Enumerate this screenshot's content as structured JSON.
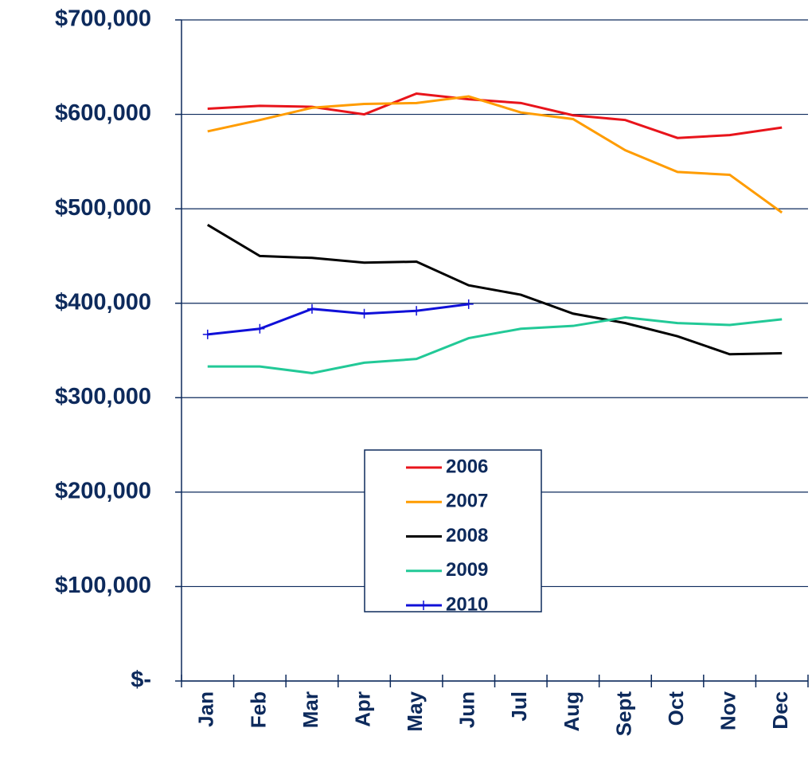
{
  "chart_data": {
    "type": "line",
    "categories": [
      "Jan",
      "Feb",
      "Mar",
      "Apr",
      "May",
      "Jun",
      "Jul",
      "Aug",
      "Sept",
      "Oct",
      "Nov",
      "Dec"
    ],
    "series": [
      {
        "name": "2006",
        "color": "#e8141b",
        "values": [
          606000,
          609000,
          608000,
          600000,
          622000,
          616000,
          612000,
          599000,
          594000,
          575000,
          578000,
          586000
        ]
      },
      {
        "name": "2007",
        "color": "#ff9c00",
        "values": [
          582000,
          594000,
          607000,
          611000,
          612000,
          619000,
          602000,
          595000,
          562000,
          539000,
          536000,
          496000
        ]
      },
      {
        "name": "2008",
        "color": "#000000",
        "values": [
          483000,
          450000,
          448000,
          443000,
          444000,
          419000,
          409000,
          389000,
          379000,
          365000,
          346000,
          347000
        ]
      },
      {
        "name": "2009",
        "color": "#22c997",
        "values": [
          333000,
          333000,
          326000,
          337000,
          341000,
          363000,
          373000,
          376000,
          385000,
          379000,
          377000,
          383000
        ]
      },
      {
        "name": "2010",
        "color": "#1010d8",
        "marker": "plus",
        "values": [
          367000,
          373000,
          394000,
          389000,
          392000,
          399000,
          null,
          null,
          null,
          null,
          null,
          null
        ]
      }
    ],
    "ylim": [
      0,
      700000
    ],
    "yticks": [
      {
        "value": 0,
        "label": "$-"
      },
      {
        "value": 100000,
        "label": "$100,000"
      },
      {
        "value": 200000,
        "label": "$200,000"
      },
      {
        "value": 300000,
        "label": "$300,000"
      },
      {
        "value": 400000,
        "label": "$400,000"
      },
      {
        "value": 500000,
        "label": "$500,000"
      },
      {
        "value": 600000,
        "label": "$600,000"
      },
      {
        "value": 700000,
        "label": "$700,000"
      }
    ],
    "grid": true,
    "legend": "center"
  }
}
